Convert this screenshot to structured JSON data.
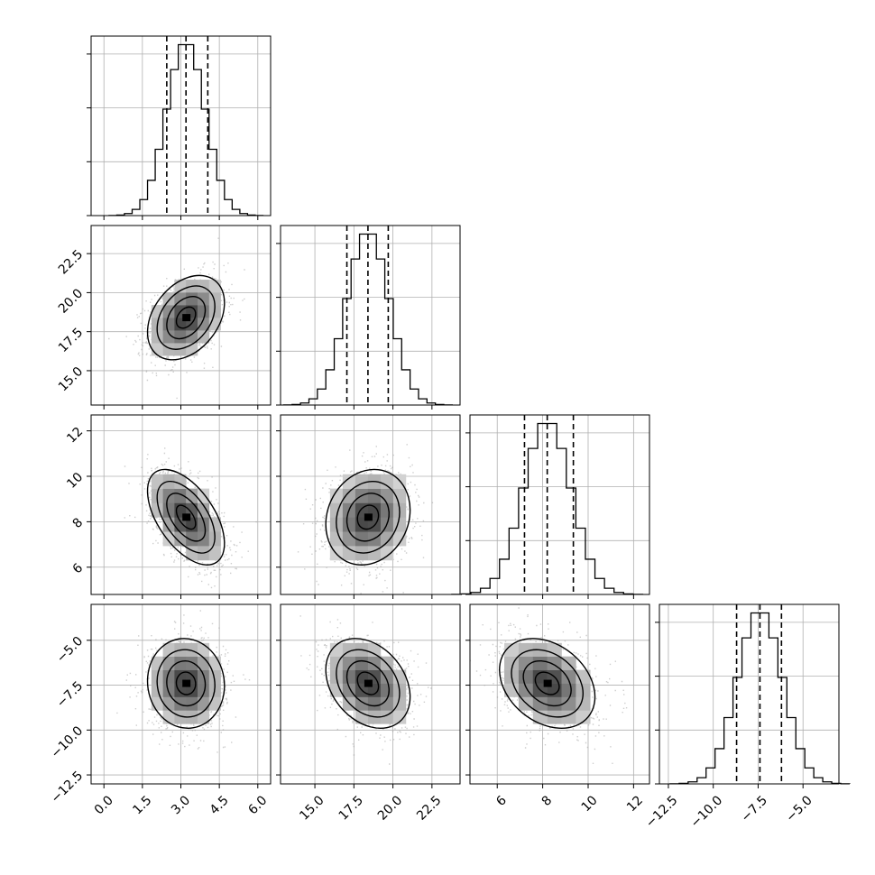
{
  "chart_data": {
    "type": "corner",
    "grid": true,
    "colors": {
      "hist": "#000000",
      "contour": "#000000",
      "grid": "#b0b0b0",
      "scatter": "#9e9e9e"
    },
    "params": [
      {
        "range": [
          -0.5,
          6.5
        ],
        "mean": 3.2,
        "sd": 0.75,
        "quantiles": [
          2.45,
          3.2,
          4.05
        ],
        "ticks": [
          0.0,
          1.5,
          3.0,
          4.5,
          6.0
        ],
        "tick_labels": [
          "0.0",
          "1.5",
          "3.0",
          "4.5",
          "6.0"
        ]
      },
      {
        "range": [
          12.8,
          24.3
        ],
        "mean": 18.4,
        "sd": 1.35,
        "quantiles": [
          17.05,
          18.4,
          19.7
        ],
        "ticks": [
          15.0,
          17.5,
          20.0,
          22.5
        ],
        "tick_labels": [
          "15.0",
          "17.5",
          "20.0",
          "22.5"
        ]
      },
      {
        "range": [
          4.8,
          12.7
        ],
        "mean": 8.2,
        "sd": 1.05,
        "quantiles": [
          7.2,
          8.2,
          9.35
        ],
        "ticks": [
          6,
          8,
          10,
          12
        ],
        "tick_labels": [
          "6",
          "8",
          "10",
          "12"
        ]
      },
      {
        "range": [
          -13.0,
          -3.0
        ],
        "mean": -7.4,
        "sd": 1.25,
        "quantiles": [
          -8.7,
          -7.4,
          -6.2
        ],
        "ticks": [
          -12.5,
          -10.0,
          -7.5,
          -5.0
        ],
        "tick_labels": [
          "−12.5",
          "−10.0",
          "−7.5",
          "−5.0"
        ]
      }
    ],
    "correlations": [
      {
        "row": 1,
        "col": 0,
        "rho": 0.35,
        "mean": [
          3.2,
          18.4
        ]
      },
      {
        "row": 2,
        "col": 0,
        "rho": -0.55,
        "mean": [
          3.2,
          8.2
        ]
      },
      {
        "row": 2,
        "col": 1,
        "rho": 0.15,
        "mean": [
          18.4,
          8.2
        ]
      },
      {
        "row": 3,
        "col": 0,
        "rho": -0.05,
        "mean": [
          3.2,
          -7.4
        ]
      },
      {
        "row": 3,
        "col": 1,
        "rho": -0.3,
        "mean": [
          18.4,
          -7.4
        ]
      },
      {
        "row": 3,
        "col": 2,
        "rho": -0.3,
        "mean": [
          8.2,
          -7.4
        ]
      }
    ],
    "hist_bins": 20,
    "contour_levels_sigma": [
      0.5,
      1.0,
      1.5,
      2.0
    ],
    "scatter_points_per_panel": 1200
  }
}
